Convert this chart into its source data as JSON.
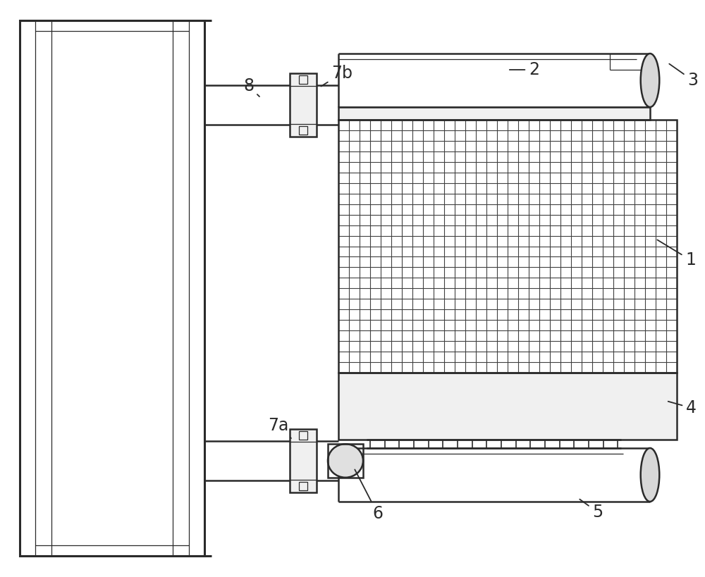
{
  "bg_color": "#ffffff",
  "line_color": "#2a2a2a",
  "lw_main": 1.8,
  "lw_thin": 0.9,
  "lw_thick": 2.2,
  "label_fontsize": 17,
  "fig_width": 10.0,
  "fig_height": 8.19
}
